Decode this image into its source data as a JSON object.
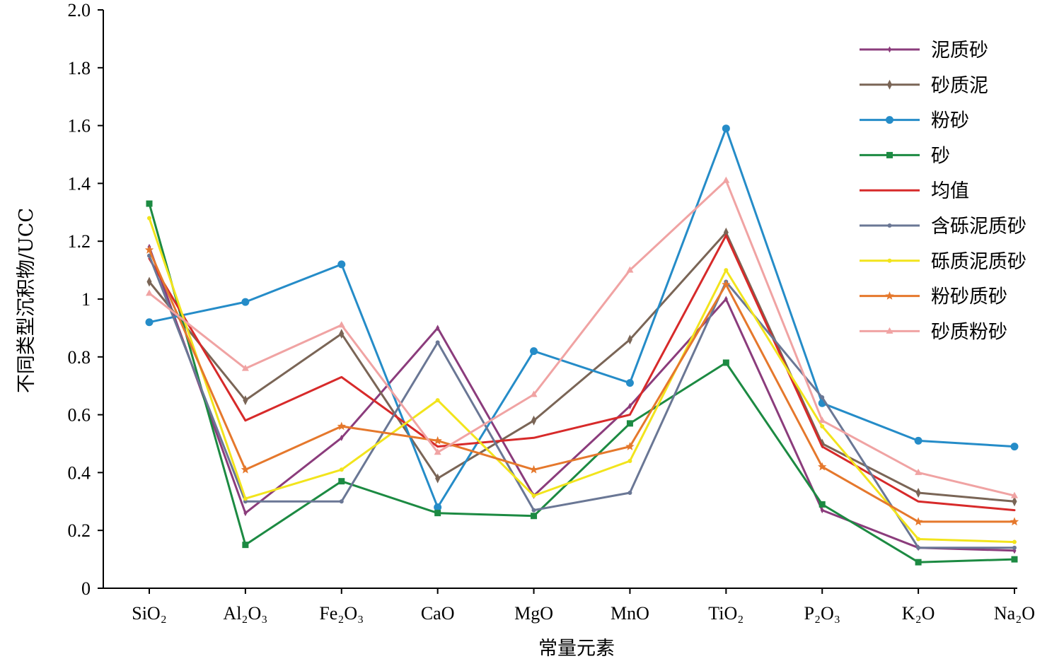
{
  "chart_data": {
    "type": "line",
    "title": "",
    "xlabel": "常量元素",
    "ylabel": "不同类型沉积物/UCC",
    "categories": [
      "SiO₂",
      "Al₂O₃",
      "Fe₂O₃",
      "CaO",
      "MgO",
      "MnO",
      "TiO₂",
      "P₂O₃",
      "K₂O",
      "Na₂O"
    ],
    "ylim": [
      0,
      2.0
    ],
    "yticks": [
      0,
      0.2,
      0.4,
      0.6,
      0.8,
      1.0,
      1.2,
      1.4,
      1.6,
      1.8,
      2.0
    ],
    "ytick_labels": [
      "0",
      "0.2",
      "0.4",
      "0.6",
      "0.8",
      "1",
      "1.2",
      "1.4",
      "1.6",
      "1.8",
      "2.0"
    ],
    "grid": false,
    "legend_position": "top-right",
    "series": [
      {
        "name": "泥质砂",
        "color": "#8B3C7C",
        "marker": "diamond-small",
        "values": [
          1.18,
          0.26,
          0.52,
          0.9,
          0.32,
          0.63,
          1.0,
          0.27,
          0.14,
          0.13
        ]
      },
      {
        "name": "砂质泥",
        "color": "#7A6556",
        "marker": "diamond",
        "values": [
          1.06,
          0.65,
          0.88,
          0.38,
          0.58,
          0.86,
          1.23,
          0.5,
          0.33,
          0.3
        ]
      },
      {
        "name": "粉砂",
        "color": "#258CC8",
        "marker": "circle",
        "values": [
          0.92,
          0.99,
          1.12,
          0.28,
          0.82,
          0.71,
          1.59,
          0.64,
          0.51,
          0.49
        ]
      },
      {
        "name": "砂",
        "color": "#1C8A42",
        "marker": "square",
        "values": [
          1.33,
          0.15,
          0.37,
          0.26,
          0.25,
          0.57,
          0.78,
          0.29,
          0.09,
          0.1
        ]
      },
      {
        "name": "均值",
        "color": "#D72A2A",
        "marker": "none",
        "values": [
          1.14,
          0.58,
          0.73,
          0.49,
          0.52,
          0.6,
          1.22,
          0.49,
          0.3,
          0.27
        ]
      },
      {
        "name": "含砾泥质砂",
        "color": "#6A7795",
        "marker": "circle-small",
        "values": [
          1.15,
          0.3,
          0.3,
          0.85,
          0.27,
          0.33,
          1.06,
          0.66,
          0.14,
          0.14
        ]
      },
      {
        "name": "砾质泥质砂",
        "color": "#F2E41C",
        "marker": "circle-small",
        "values": [
          1.28,
          0.31,
          0.41,
          0.65,
          0.32,
          0.44,
          1.1,
          0.56,
          0.17,
          0.16
        ]
      },
      {
        "name": "粉砂质砂",
        "color": "#E5782C",
        "marker": "star",
        "values": [
          1.17,
          0.41,
          0.56,
          0.51,
          0.41,
          0.49,
          1.05,
          0.42,
          0.23,
          0.23
        ]
      },
      {
        "name": "砂质粉砂",
        "color": "#F0A3A3",
        "marker": "triangle",
        "values": [
          1.02,
          0.76,
          0.91,
          0.47,
          0.67,
          1.1,
          1.41,
          0.58,
          0.4,
          0.32
        ]
      }
    ]
  }
}
